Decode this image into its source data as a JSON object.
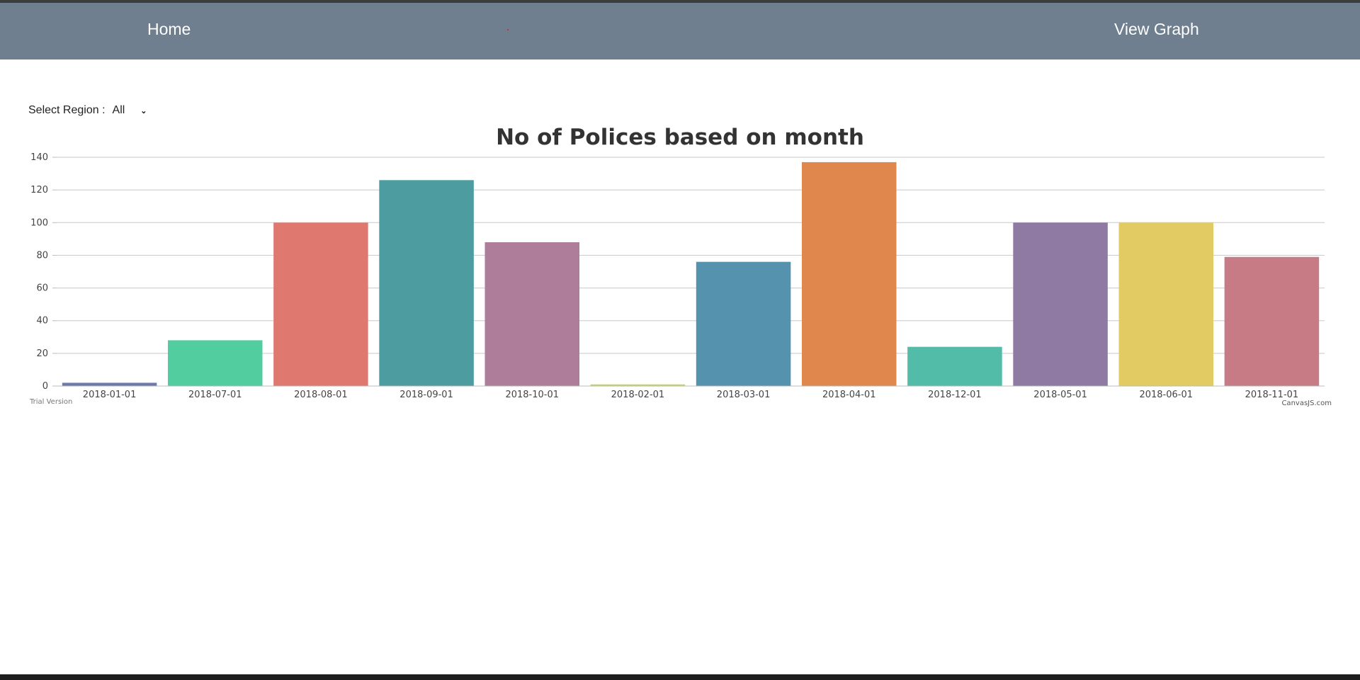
{
  "nav": {
    "home_label": "Home",
    "graph_label": "View Graph"
  },
  "filter": {
    "label": "Select Region :",
    "selected": "All"
  },
  "chart_data": {
    "type": "bar",
    "title": "No of Polices based on month",
    "xlabel": "",
    "ylabel": "",
    "ylim": [
      0,
      140
    ],
    "yticks": [
      0,
      20,
      40,
      60,
      80,
      100,
      120,
      140
    ],
    "grid": true,
    "categories": [
      "2018-01-01",
      "2018-07-01",
      "2018-08-01",
      "2018-09-01",
      "2018-10-01",
      "2018-02-01",
      "2018-03-01",
      "2018-04-01",
      "2018-12-01",
      "2018-05-01",
      "2018-06-01",
      "2018-11-01"
    ],
    "values": [
      2,
      28,
      100,
      126,
      88,
      1,
      76,
      137,
      24,
      100,
      100,
      79
    ],
    "colors": [
      "#6d78ad",
      "#51cda0",
      "#df7970",
      "#4c9ca0",
      "#ae7d99",
      "#c9d45c",
      "#5592ad",
      "#df874d",
      "#52bca8",
      "#8e7aa3",
      "#e3cb64",
      "#c77b85"
    ],
    "watermark_left": "Trial Version",
    "watermark_right": "CanvasJS.com"
  }
}
